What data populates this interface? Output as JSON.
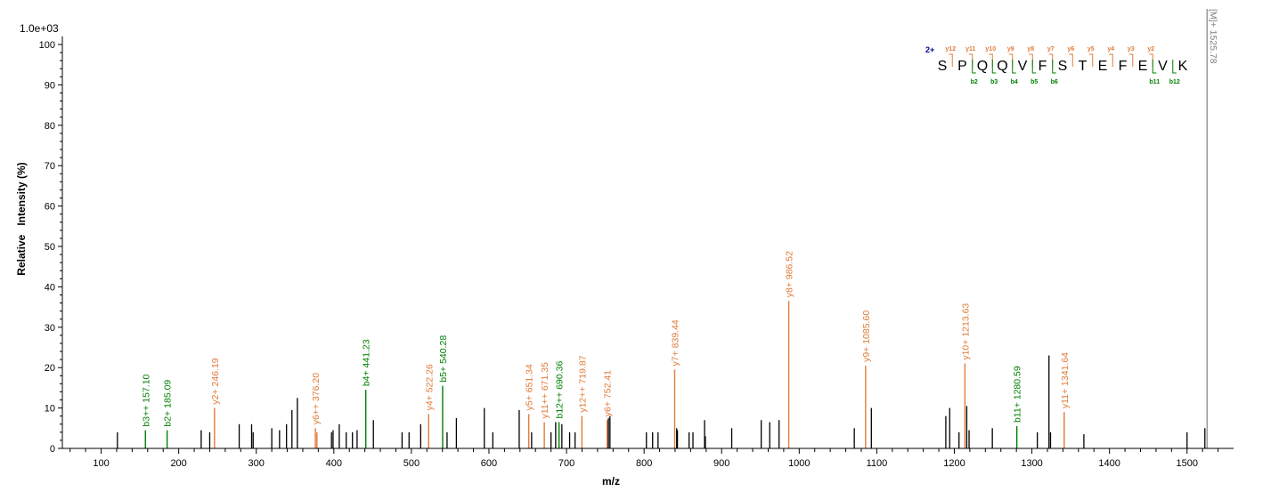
{
  "chart_data": {
    "type": "bar",
    "title": "",
    "scale_label": "1.0e+03",
    "xlabel": "m/z",
    "ylabel": "Relative   Intensity (%)",
    "xlim": [
      50,
      1560
    ],
    "ylim": [
      0,
      102
    ],
    "x_ticks": [
      100,
      200,
      300,
      400,
      500,
      600,
      700,
      800,
      900,
      1000,
      1100,
      1200,
      1300,
      1400,
      1500
    ],
    "y_ticks": [
      0,
      10,
      20,
      30,
      40,
      50,
      60,
      70,
      80,
      90,
      100
    ],
    "colors": {
      "b_ion": "#008000",
      "y_ion": "#e07b39",
      "unannotated": "#000000",
      "precursor": "#808080",
      "charge": "#00008b"
    },
    "annotated_peaks": [
      {
        "mz": 157.1,
        "intensity": 4.5,
        "label": "b3++ 157.10",
        "ion": "b"
      },
      {
        "mz": 185.09,
        "intensity": 4.5,
        "label": "b2+ 185.09",
        "ion": "b"
      },
      {
        "mz": 246.19,
        "intensity": 10,
        "label": "y2+ 246.19",
        "ion": "y"
      },
      {
        "mz": 376.2,
        "intensity": 5,
        "label": "y6++ 376.20",
        "ion": "y"
      },
      {
        "mz": 378.23,
        "intensity": 4,
        "label": "",
        "ion": "y"
      },
      {
        "mz": 441.23,
        "intensity": 14.5,
        "label": "b4+ 441.23",
        "ion": "b"
      },
      {
        "mz": 522.26,
        "intensity": 8.5,
        "label": "y4+ 522.26",
        "ion": "y"
      },
      {
        "mz": 540.28,
        "intensity": 15.5,
        "label": "b5+ 540.28",
        "ion": "b"
      },
      {
        "mz": 651.34,
        "intensity": 8.5,
        "label": "y5+ 651.34",
        "ion": "y"
      },
      {
        "mz": 671.35,
        "intensity": 6.5,
        "label": "y11++ 671.35",
        "ion": "y"
      },
      {
        "mz": 690.36,
        "intensity": 6.5,
        "label": "b12++ 690.36",
        "ion": "b"
      },
      {
        "mz": 719.87,
        "intensity": 8,
        "label": "y12++ 719.87",
        "ion": "y"
      },
      {
        "mz": 752.41,
        "intensity": 7,
        "label": "y6+ 752.41",
        "ion": "y"
      },
      {
        "mz": 839.44,
        "intensity": 19.5,
        "label": "y7+ 839.44",
        "ion": "y"
      },
      {
        "mz": 986.52,
        "intensity": 36.5,
        "label": "y8+ 986.52",
        "ion": "y"
      },
      {
        "mz": 1085.6,
        "intensity": 20.5,
        "label": "y9+ 1085.60",
        "ion": "y"
      },
      {
        "mz": 1213.63,
        "intensity": 21,
        "label": "y10+ 1213.63",
        "ion": "y"
      },
      {
        "mz": 1280.59,
        "intensity": 5.5,
        "label": "b11+ 1280.59",
        "ion": "b"
      },
      {
        "mz": 1341.64,
        "intensity": 9,
        "label": "y11+ 1341.64",
        "ion": "y"
      }
    ],
    "precursor": {
      "mz": 1525.78,
      "intensity": 100,
      "label": "[M]+ 1525.78"
    },
    "unannotated_peaks": [
      [
        121,
        4
      ],
      [
        229,
        4.5
      ],
      [
        240,
        4
      ],
      [
        278,
        6
      ],
      [
        294,
        6
      ],
      [
        296,
        4
      ],
      [
        320,
        5
      ],
      [
        330,
        4.5
      ],
      [
        339,
        6
      ],
      [
        346,
        9.5
      ],
      [
        353,
        12.5
      ],
      [
        397,
        4
      ],
      [
        399,
        4.5
      ],
      [
        407,
        6
      ],
      [
        416,
        4
      ],
      [
        424,
        4
      ],
      [
        430,
        4.5
      ],
      [
        451,
        7
      ],
      [
        488,
        4
      ],
      [
        497,
        4
      ],
      [
        512,
        6
      ],
      [
        546,
        4
      ],
      [
        558,
        7.5
      ],
      [
        594,
        10
      ],
      [
        605,
        4
      ],
      [
        639,
        9.5
      ],
      [
        655,
        4
      ],
      [
        680,
        4
      ],
      [
        686,
        6.5
      ],
      [
        694,
        6
      ],
      [
        704,
        4
      ],
      [
        711,
        4
      ],
      [
        754,
        7.5
      ],
      [
        756,
        8
      ],
      [
        803,
        4
      ],
      [
        811,
        4
      ],
      [
        818,
        4
      ],
      [
        842,
        5
      ],
      [
        843,
        4.5
      ],
      [
        858,
        4
      ],
      [
        863,
        4
      ],
      [
        878,
        7
      ],
      [
        879,
        3
      ],
      [
        913,
        5
      ],
      [
        951,
        7
      ],
      [
        962,
        6.5
      ],
      [
        974,
        7
      ],
      [
        1071,
        5
      ],
      [
        1093,
        10
      ],
      [
        1189,
        8
      ],
      [
        1194,
        10
      ],
      [
        1206,
        4
      ],
      [
        1216,
        10.5
      ],
      [
        1219,
        4.5
      ],
      [
        1249,
        5
      ],
      [
        1307,
        4
      ],
      [
        1322,
        23
      ],
      [
        1324,
        4
      ],
      [
        1367,
        3.5
      ],
      [
        1500,
        4
      ],
      [
        1523,
        5
      ]
    ],
    "sequence": {
      "charge": "2+",
      "residues": [
        "S",
        "P",
        "Q",
        "Q",
        "V",
        "F",
        "S",
        "T",
        "E",
        "F",
        "E",
        "V",
        "K"
      ],
      "y_ions": [
        {
          "after": 1,
          "label": "y12"
        },
        {
          "after": 2,
          "label": "y11"
        },
        {
          "after": 3,
          "label": "y10"
        },
        {
          "after": 4,
          "label": "y9"
        },
        {
          "after": 5,
          "label": "y8"
        },
        {
          "after": 6,
          "label": "y7"
        },
        {
          "after": 7,
          "label": "y6"
        },
        {
          "after": 8,
          "label": "y5"
        },
        {
          "after": 9,
          "label": "y4"
        },
        {
          "after": 10,
          "label": "y3"
        },
        {
          "after": 11,
          "label": "y2"
        }
      ],
      "b_ions": [
        {
          "after": 2,
          "label": "b2"
        },
        {
          "after": 3,
          "label": "b3"
        },
        {
          "after": 4,
          "label": "b4"
        },
        {
          "after": 5,
          "label": "b5"
        },
        {
          "after": 6,
          "label": "b6"
        },
        {
          "after": 11,
          "label": "b11"
        },
        {
          "after": 12,
          "label": "b12"
        }
      ]
    }
  }
}
